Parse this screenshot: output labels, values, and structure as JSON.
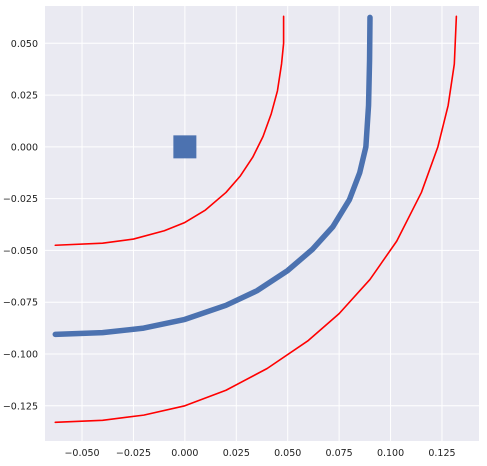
{
  "chart_data": {
    "type": "line",
    "title": "",
    "xlabel": "",
    "ylabel": "",
    "xlim": [
      -0.068,
      0.143
    ],
    "ylim": [
      -0.142,
      0.068
    ],
    "grid": true,
    "x_ticks": [
      {
        "value": -0.05,
        "label": "−0.050"
      },
      {
        "value": -0.025,
        "label": "−0.025"
      },
      {
        "value": 0.0,
        "label": "0.000"
      },
      {
        "value": 0.025,
        "label": "0.025"
      },
      {
        "value": 0.05,
        "label": "0.050"
      },
      {
        "value": 0.075,
        "label": "0.075"
      },
      {
        "value": 0.1,
        "label": "0.100"
      },
      {
        "value": 0.125,
        "label": "0.125"
      }
    ],
    "y_ticks": [
      {
        "value": 0.05,
        "label": "0.050"
      },
      {
        "value": 0.025,
        "label": "0.025"
      },
      {
        "value": 0.0,
        "label": "0.000"
      },
      {
        "value": -0.025,
        "label": "−0.025"
      },
      {
        "value": -0.05,
        "label": "−0.050"
      },
      {
        "value": -0.075,
        "label": "−0.075"
      },
      {
        "value": -0.1,
        "label": "−0.100"
      },
      {
        "value": -0.125,
        "label": "−0.125"
      }
    ],
    "series": [
      {
        "kind": "line",
        "color": "#ff0000",
        "points": [
          [
            -0.063,
            -0.0475
          ],
          [
            -0.04,
            -0.0465
          ],
          [
            -0.025,
            -0.0445
          ],
          [
            -0.01,
            -0.0405
          ],
          [
            0.0,
            -0.0365
          ],
          [
            0.01,
            -0.0305
          ],
          [
            0.02,
            -0.022
          ],
          [
            0.027,
            -0.014
          ],
          [
            0.033,
            -0.005
          ],
          [
            0.038,
            0.005
          ],
          [
            0.042,
            0.016
          ],
          [
            0.045,
            0.027
          ],
          [
            0.047,
            0.04
          ],
          [
            0.048,
            0.05
          ],
          [
            0.048,
            0.063
          ]
        ]
      },
      {
        "kind": "thick-line",
        "color": "#4c72b0",
        "points": [
          [
            -0.063,
            -0.0905
          ],
          [
            -0.04,
            -0.0897
          ],
          [
            -0.02,
            -0.0875
          ],
          [
            0.0,
            -0.0833
          ],
          [
            0.02,
            -0.0765
          ],
          [
            0.035,
            -0.0695
          ],
          [
            0.05,
            -0.0597
          ],
          [
            0.062,
            -0.0495
          ],
          [
            0.072,
            -0.0385
          ],
          [
            0.08,
            -0.0255
          ],
          [
            0.085,
            -0.0125
          ],
          [
            0.088,
            0.0
          ],
          [
            0.0893,
            0.02
          ],
          [
            0.0898,
            0.042
          ],
          [
            0.09,
            0.0625
          ]
        ]
      },
      {
        "kind": "line",
        "color": "#ff0000",
        "points": [
          [
            -0.063,
            -0.133
          ],
          [
            -0.04,
            -0.132
          ],
          [
            -0.02,
            -0.1295
          ],
          [
            0.0,
            -0.125
          ],
          [
            0.02,
            -0.1175
          ],
          [
            0.04,
            -0.107
          ],
          [
            0.06,
            -0.0935
          ],
          [
            0.075,
            -0.0805
          ],
          [
            0.09,
            -0.064
          ],
          [
            0.103,
            -0.0455
          ],
          [
            0.115,
            -0.022
          ],
          [
            0.123,
            0.0
          ],
          [
            0.128,
            0.02
          ],
          [
            0.131,
            0.04
          ],
          [
            0.132,
            0.063
          ]
        ]
      }
    ],
    "markers": [
      {
        "shape": "square",
        "x": 0.0,
        "y": 0.0,
        "color": "#4c72b0"
      }
    ]
  }
}
